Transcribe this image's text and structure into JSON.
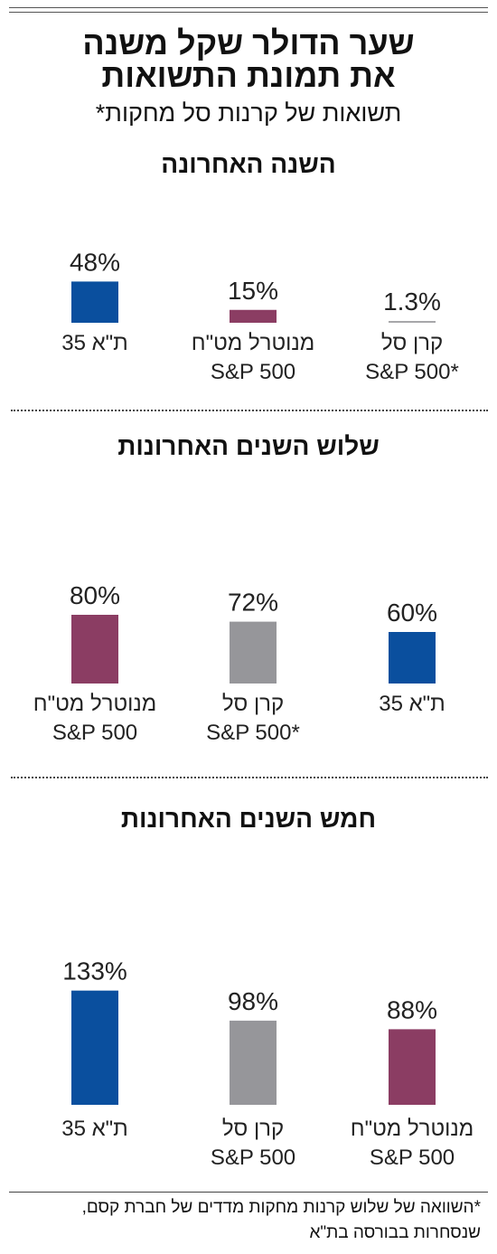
{
  "title_line1": "שער הדולר שקל משנה",
  "title_line2": "את תמונת התשואות",
  "subtitle": "תשואות של קרנות סל מחקות*",
  "chart_data": [
    {
      "type": "bar",
      "title": "השנה האחרונה",
      "ylim": [
        0,
        140
      ],
      "bars": [
        {
          "label": [
            "ת\"א 35"
          ],
          "value": 48,
          "text": "48%",
          "color": "#0a4f9e"
        },
        {
          "label": [
            "מנוטרל מט\"ח",
            "S&P 500"
          ],
          "value": 15,
          "text": "15%",
          "color": "#8b3d63"
        },
        {
          "label": [
            "קרן סל",
            "S&P 500*"
          ],
          "value": 1.3,
          "text": "1.3%",
          "color": "#a7a7aa"
        }
      ]
    },
    {
      "type": "bar",
      "title": "שלוש השנים האחרונות",
      "ylim": [
        0,
        140
      ],
      "bars": [
        {
          "label": [
            "מנוטרל מט\"ח",
            "S&P 500"
          ],
          "value": 80,
          "text": "80%",
          "color": "#8b3d63"
        },
        {
          "label": [
            "קרן סל",
            "S&P 500*"
          ],
          "value": 72,
          "text": "72%",
          "color": "#96969a"
        },
        {
          "label": [
            "ת\"א 35"
          ],
          "value": 60,
          "text": "60%",
          "color": "#0a4f9e"
        }
      ]
    },
    {
      "type": "bar",
      "title": "חמש השנים האחרונות",
      "ylim": [
        0,
        140
      ],
      "bars": [
        {
          "label": [
            "ת\"א 35"
          ],
          "value": 133,
          "text": "133%",
          "color": "#0a4f9e"
        },
        {
          "label": [
            "קרן סל",
            "S&P 500"
          ],
          "value": 98,
          "text": "98%",
          "color": "#96969a"
        },
        {
          "label": [
            "מנוטרל מט\"ח",
            "S&P 500"
          ],
          "value": 88,
          "text": "88%",
          "color": "#8b3d63"
        }
      ]
    }
  ],
  "footnote_line1": "*השוואה של שלוש קרנות מחקות מדדים של חברת קסם,",
  "footnote_line2": "שנסחרות בבורסה בת\"א"
}
